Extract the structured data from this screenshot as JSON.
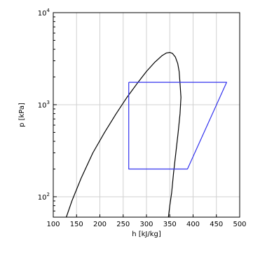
{
  "chart_data": {
    "type": "line",
    "xlabel": "h [kJ/kg]",
    "ylabel": "p [kPa]",
    "xlim": [
      100,
      500
    ],
    "ylim": [
      60,
      10000
    ],
    "yscale": "log",
    "grid": true,
    "x_ticks": [
      100,
      150,
      200,
      250,
      300,
      350,
      400,
      450,
      500
    ],
    "y_ticks": [
      {
        "value": 100,
        "base": "10",
        "exp": "2"
      },
      {
        "value": 1000,
        "base": "10",
        "exp": "3"
      },
      {
        "value": 10000,
        "base": "10",
        "exp": "4"
      }
    ],
    "series": [
      {
        "color": "#000000",
        "x": [
          128,
          140,
          160,
          185,
          210,
          235,
          258,
          280,
          300,
          318,
          333,
          343,
          350,
          356,
          362,
          367,
          370,
          372,
          374,
          372,
          368,
          363,
          358,
          354,
          350,
          347
        ],
        "y": [
          60,
          90,
          160,
          300,
          500,
          800,
          1200,
          1700,
          2300,
          2900,
          3400,
          3650,
          3700,
          3600,
          3300,
          2800,
          2300,
          1700,
          1200,
          800,
          500,
          300,
          180,
          110,
          80,
          60
        ]
      },
      {
        "color": "#3333ee",
        "x": [
          262,
          472,
          388,
          262,
          262
        ],
        "y": [
          1750,
          1750,
          200,
          200,
          1750
        ]
      }
    ]
  }
}
